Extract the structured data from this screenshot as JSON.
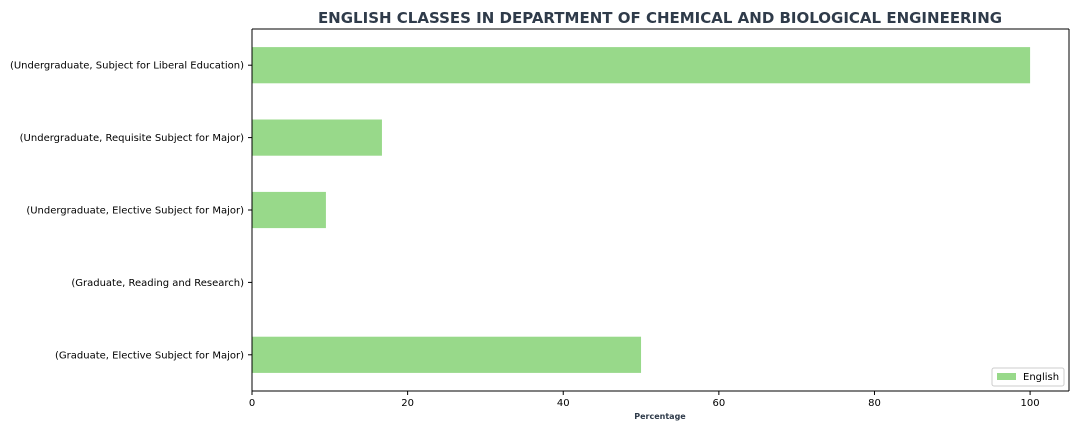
{
  "chart_data": {
    "type": "bar",
    "orientation": "horizontal",
    "title": "ENGLISH CLASSES IN DEPARTMENT OF CHEMICAL AND BIOLOGICAL ENGINEERING",
    "xlabel": "Percentage",
    "ylabel": "",
    "categories": [
      "(Undergraduate, Subject for Liberal Education)",
      "(Undergraduate, Requisite Subject for Major)",
      "(Undergraduate, Elective Subject for Major)",
      "(Graduate, Reading and Research)",
      "(Graduate, Elective Subject for Major)"
    ],
    "series": [
      {
        "name": "English",
        "values": [
          100,
          16.7,
          9.5,
          0,
          50
        ],
        "color": "#98d98a"
      }
    ],
    "xlim": [
      0,
      105
    ],
    "xticks": [
      0,
      20,
      40,
      60,
      80,
      100
    ],
    "grid": false,
    "legend_position": "lower-right"
  }
}
